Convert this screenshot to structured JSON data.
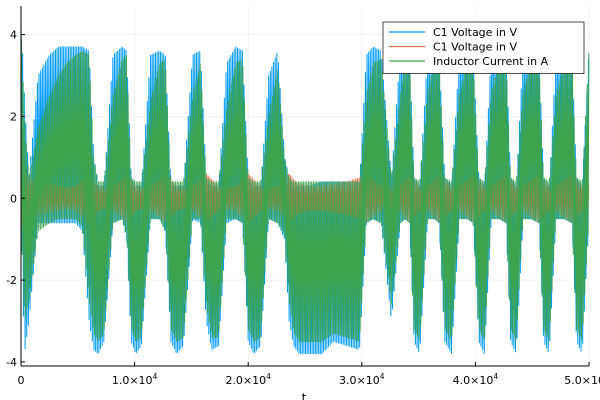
{
  "chart_data": {
    "type": "line",
    "title": "",
    "xlabel": "t",
    "ylabel": "",
    "xlim": [
      0,
      50000
    ],
    "ylim": [
      -4.1,
      4.7
    ],
    "grid": true,
    "legend_position": "top-right",
    "x_ticks": [
      {
        "value": 0,
        "label": "0"
      },
      {
        "value": 10000,
        "mantissa": "1.0×10",
        "exp": "4"
      },
      {
        "value": 20000,
        "mantissa": "2.0×10",
        "exp": "4"
      },
      {
        "value": 30000,
        "mantissa": "3.0×10",
        "exp": "4"
      },
      {
        "value": 40000,
        "mantissa": "4.0×10",
        "exp": "4"
      },
      {
        "value": 50000,
        "mantissa": "5.0×10",
        "exp": "4"
      }
    ],
    "y_ticks": [
      {
        "value": -4,
        "label": "-4"
      },
      {
        "value": -2,
        "label": "-2"
      },
      {
        "value": 0,
        "label": "0"
      },
      {
        "value": 2,
        "label": "2"
      },
      {
        "value": 4,
        "label": "4"
      }
    ],
    "series": [
      {
        "name": "C1 Voltage in V",
        "color": "#009af9",
        "x": [
          0,
          300,
          700,
          1500,
          2500,
          3300,
          4000,
          4800,
          5400,
          6000,
          6400,
          6800,
          7300,
          8100,
          8900,
          9300,
          9700,
          10100,
          10600,
          11400,
          12200,
          12700,
          13200,
          13700,
          14300,
          15100,
          15800,
          16300,
          16800,
          17400,
          18100,
          18900,
          19500,
          20000,
          20500,
          21100,
          21800,
          22600,
          23200,
          23600,
          24000,
          24500,
          25400,
          26500,
          27500,
          28700,
          29800,
          30400,
          31000,
          31700,
          32600,
          33400,
          33800,
          34200,
          34600,
          35100,
          35800,
          36400,
          36800,
          37300,
          37900,
          38600,
          39300,
          39800,
          40300,
          40800,
          41400,
          42100,
          42700,
          43100,
          43600,
          44200,
          44900,
          45600,
          46000,
          46500,
          47100,
          47800,
          48500,
          48900,
          49400,
          50000
        ],
        "upper": [
          4.5,
          2.5,
          0.5,
          3.0,
          3.5,
          3.7,
          3.7,
          3.7,
          3.7,
          3.6,
          1.0,
          0.3,
          0.3,
          3.5,
          3.7,
          3.6,
          0.5,
          0.3,
          0.3,
          3.5,
          3.6,
          3.5,
          0.3,
          0.3,
          0.3,
          3.5,
          3.6,
          0.5,
          0.3,
          0.3,
          3.3,
          3.7,
          3.6,
          0.5,
          0.3,
          0.3,
          3.0,
          3.6,
          1.0,
          0.5,
          0.3,
          0.3,
          0.3,
          0.4,
          0.4,
          0.4,
          0.4,
          3.5,
          3.7,
          3.6,
          0.5,
          3.6,
          3.7,
          3.6,
          0.5,
          0.3,
          3.6,
          3.7,
          3.6,
          0.5,
          0.3,
          3.6,
          3.7,
          3.6,
          0.5,
          0.3,
          3.6,
          3.7,
          3.6,
          0.5,
          0.3,
          3.6,
          3.7,
          3.6,
          0.5,
          0.3,
          3.5,
          3.6,
          3.6,
          0.5,
          0.3,
          3.7
        ],
        "lower": [
          -0.5,
          -3.8,
          -3.0,
          -0.6,
          -0.6,
          -0.6,
          -0.6,
          -0.6,
          -0.8,
          -3.0,
          -3.7,
          -3.8,
          -3.5,
          -0.6,
          -0.5,
          -1.0,
          -3.5,
          -3.8,
          -3.6,
          -0.5,
          -0.5,
          -0.8,
          -3.5,
          -3.8,
          -3.6,
          -0.5,
          -0.6,
          -3.0,
          -3.7,
          -3.6,
          -0.6,
          -0.5,
          -0.6,
          -3.5,
          -3.8,
          -3.6,
          -0.5,
          -0.6,
          -1.0,
          -3.0,
          -3.6,
          -3.8,
          -3.8,
          -3.8,
          -3.5,
          -3.6,
          -3.7,
          -0.6,
          -0.5,
          -0.6,
          -3.0,
          -0.6,
          -0.5,
          -0.6,
          -3.5,
          -3.8,
          -0.5,
          -0.5,
          -0.6,
          -3.5,
          -3.8,
          -0.5,
          -0.5,
          -0.6,
          -3.5,
          -3.8,
          -0.5,
          -0.5,
          -0.6,
          -3.5,
          -3.8,
          -0.5,
          -0.5,
          -0.6,
          -3.5,
          -3.8,
          -0.5,
          -0.5,
          -0.6,
          -3.5,
          -3.8,
          -0.5
        ]
      },
      {
        "name": "C1 Voltage in V",
        "color": "#e26f46",
        "x": [
          0,
          300,
          700,
          1500,
          2500,
          3300,
          4000,
          4800,
          5400,
          6000,
          6400,
          6800,
          7300,
          8100,
          8900,
          9300,
          9700,
          10100,
          10600,
          11400,
          12200,
          12700,
          13200,
          13700,
          14300,
          15100,
          15800,
          16300,
          16800,
          17400,
          18100,
          18900,
          19500,
          20000,
          20500,
          21100,
          21800,
          22600,
          23200,
          23600,
          24000,
          24500,
          25400,
          26500,
          27500,
          28700,
          29800,
          30400,
          31000,
          31700,
          32600,
          33400,
          33800,
          34200,
          34600,
          35100,
          35800,
          36400,
          36800,
          37300,
          37900,
          38600,
          39300,
          39800,
          40300,
          40800,
          41400,
          42100,
          42700,
          43100,
          43600,
          44200,
          44900,
          45600,
          46000,
          46500,
          47100,
          47800,
          48500,
          48900,
          49400,
          50000
        ],
        "upper": [
          1.0,
          0.7,
          0.5,
          0.4,
          0.35,
          0.3,
          0.25,
          0.3,
          0.45,
          0.6,
          0.45,
          0.3,
          0.25,
          0.3,
          0.45,
          0.6,
          0.45,
          0.3,
          0.25,
          0.3,
          0.45,
          0.6,
          0.45,
          0.3,
          0.25,
          0.3,
          0.45,
          0.6,
          0.45,
          0.3,
          0.25,
          0.3,
          0.45,
          0.6,
          0.45,
          0.3,
          0.25,
          0.3,
          0.45,
          0.6,
          0.45,
          0.35,
          0.3,
          0.3,
          0.35,
          0.4,
          0.5,
          0.6,
          0.45,
          0.3,
          0.25,
          0.3,
          0.45,
          0.6,
          0.45,
          0.3,
          0.3,
          0.45,
          0.6,
          0.45,
          0.3,
          0.3,
          0.45,
          0.6,
          0.45,
          0.3,
          0.3,
          0.45,
          0.6,
          0.45,
          0.3,
          0.3,
          0.45,
          0.6,
          0.45,
          0.3,
          0.3,
          0.45,
          0.6,
          0.45,
          0.3,
          0.35
        ],
        "lower": [
          -0.8,
          -0.6,
          -0.5,
          -0.4,
          -0.35,
          -0.3,
          -0.25,
          -0.3,
          -0.45,
          -0.6,
          -0.45,
          -0.3,
          -0.25,
          -0.3,
          -0.45,
          -0.6,
          -0.45,
          -0.3,
          -0.25,
          -0.3,
          -0.45,
          -0.6,
          -0.45,
          -0.3,
          -0.25,
          -0.3,
          -0.45,
          -0.6,
          -0.45,
          -0.3,
          -0.25,
          -0.3,
          -0.45,
          -0.6,
          -0.45,
          -0.3,
          -0.25,
          -0.3,
          -0.45,
          -0.6,
          -0.45,
          -0.35,
          -0.3,
          -0.3,
          -0.35,
          -0.4,
          -0.5,
          -0.6,
          -0.45,
          -0.3,
          -0.25,
          -0.3,
          -0.45,
          -0.6,
          -0.45,
          -0.3,
          -0.3,
          -0.45,
          -0.6,
          -0.45,
          -0.3,
          -0.3,
          -0.45,
          -0.6,
          -0.45,
          -0.3,
          -0.3,
          -0.45,
          -0.6,
          -0.45,
          -0.3,
          -0.3,
          -0.45,
          -0.6,
          -0.45,
          -0.3,
          -0.3,
          -0.45,
          -0.6,
          -0.45,
          -0.3,
          -0.35
        ]
      },
      {
        "name": "Inductor Current in A",
        "color": "#3da44d",
        "x": [
          0,
          300,
          700,
          1500,
          2500,
          3300,
          4000,
          4800,
          5400,
          6000,
          6400,
          6800,
          7300,
          8100,
          8900,
          9300,
          9700,
          10100,
          10600,
          11400,
          12200,
          12700,
          13200,
          13700,
          14300,
          15100,
          15800,
          16300,
          16800,
          17400,
          18100,
          18900,
          19500,
          20000,
          20500,
          21100,
          21800,
          22600,
          23200,
          23600,
          24000,
          24500,
          25400,
          26500,
          27500,
          28700,
          29800,
          30400,
          31000,
          31700,
          32600,
          33400,
          33800,
          34200,
          34600,
          35100,
          35800,
          36400,
          36800,
          37300,
          37900,
          38600,
          39300,
          39800,
          40300,
          40800,
          41400,
          42100,
          42700,
          43100,
          43600,
          44200,
          44900,
          45600,
          46000,
          46500,
          47100,
          47800,
          48500,
          48900,
          49400,
          50000
        ],
        "upper": [
          4.2,
          2.0,
          0.5,
          1.7,
          2.5,
          3.0,
          3.3,
          3.5,
          3.6,
          3.5,
          1.0,
          0.4,
          0.4,
          2.5,
          3.4,
          3.5,
          0.5,
          0.4,
          0.4,
          2.4,
          3.3,
          3.4,
          0.4,
          0.4,
          0.4,
          2.5,
          3.3,
          0.5,
          0.4,
          0.4,
          2.2,
          3.3,
          3.4,
          0.5,
          0.4,
          0.4,
          2.0,
          3.2,
          1.0,
          0.5,
          0.4,
          0.4,
          0.4,
          0.4,
          0.4,
          0.4,
          0.4,
          2.5,
          3.3,
          3.4,
          0.5,
          2.6,
          3.3,
          3.4,
          0.5,
          0.4,
          2.6,
          3.3,
          3.4,
          0.5,
          0.4,
          2.6,
          3.3,
          3.4,
          0.5,
          0.4,
          2.6,
          3.3,
          3.4,
          0.5,
          0.4,
          2.6,
          3.3,
          3.4,
          0.5,
          0.4,
          2.5,
          3.3,
          3.4,
          0.5,
          0.4,
          3.6
        ],
        "lower": [
          -0.4,
          -3.0,
          -2.5,
          -0.8,
          -0.6,
          -0.5,
          -0.5,
          -0.5,
          -0.7,
          -2.5,
          -3.3,
          -3.5,
          -3.3,
          -0.6,
          -0.5,
          -0.9,
          -3.2,
          -3.5,
          -3.4,
          -0.5,
          -0.5,
          -0.8,
          -3.2,
          -3.5,
          -3.4,
          -0.5,
          -0.5,
          -2.6,
          -3.4,
          -3.4,
          -0.5,
          -0.5,
          -0.6,
          -3.2,
          -3.5,
          -3.4,
          -0.5,
          -0.6,
          -0.9,
          -2.5,
          -3.3,
          -3.5,
          -3.5,
          -3.5,
          -3.3,
          -3.4,
          -3.5,
          -0.6,
          -0.5,
          -0.6,
          -2.6,
          -0.6,
          -0.5,
          -0.6,
          -3.2,
          -3.5,
          -0.5,
          -0.5,
          -0.6,
          -3.2,
          -3.5,
          -0.5,
          -0.5,
          -0.6,
          -3.2,
          -3.5,
          -0.5,
          -0.5,
          -0.6,
          -3.2,
          -3.5,
          -0.5,
          -0.5,
          -0.6,
          -3.2,
          -3.5,
          -0.5,
          -0.5,
          -0.6,
          -3.2,
          -3.5,
          -0.5
        ]
      }
    ]
  }
}
